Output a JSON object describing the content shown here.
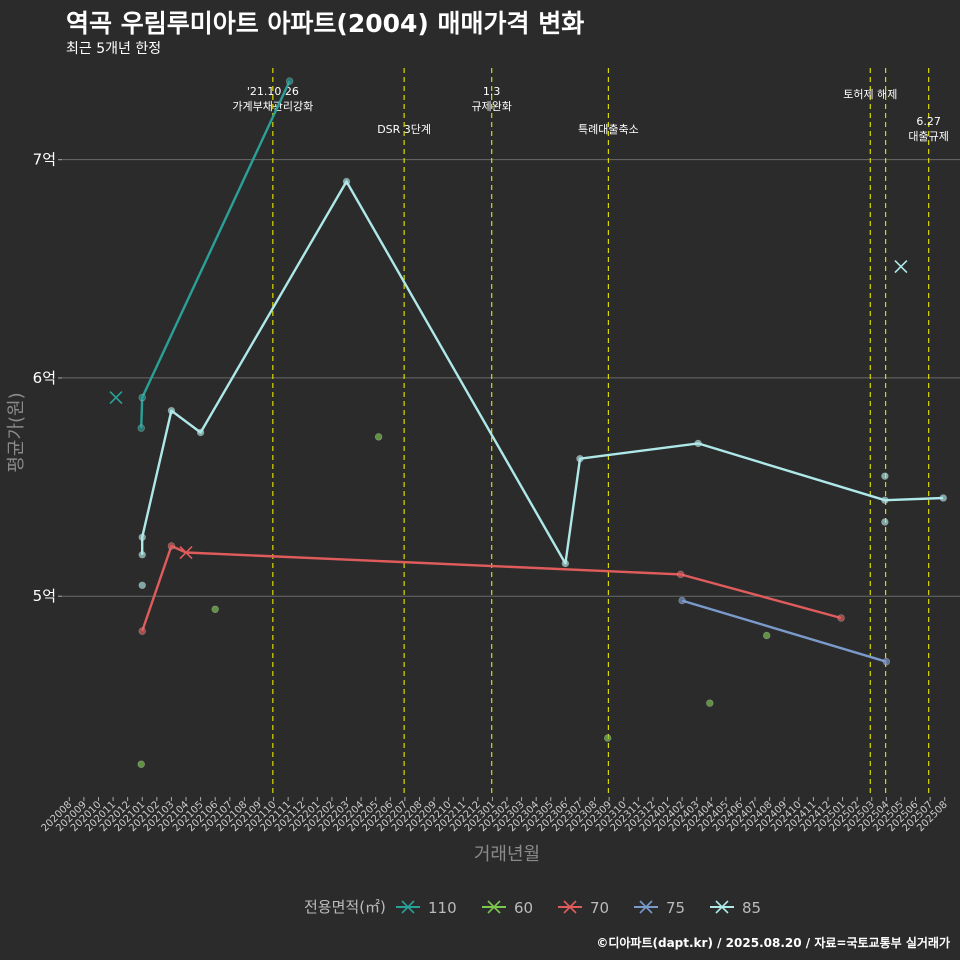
{
  "header": {
    "title": "역곡 우림루미아트 아파트(2004) 매매가격 변화",
    "subtitle": "최근 5개년 한정"
  },
  "caption": "©디아파트(dapt.kr) / 2025.08.20 / 자료=국토교통부 실거래가",
  "chart_data": {
    "type": "line",
    "xlabel": "거래년월",
    "ylabel": "평균가(원)",
    "ylim": [
      4.08,
      7.42
    ],
    "yticks": [
      5,
      6,
      7
    ],
    "ytick_labels": [
      "5억",
      "6억",
      "7억"
    ],
    "x_categories": [
      "202008",
      "202009",
      "202010",
      "202011",
      "202012",
      "202101",
      "202102",
      "202103",
      "202104",
      "202105",
      "202106",
      "202107",
      "202108",
      "202109",
      "202110",
      "202111",
      "202112",
      "202201",
      "202202",
      "202203",
      "202204",
      "202205",
      "202206",
      "202207",
      "202208",
      "202209",
      "202210",
      "202211",
      "202212",
      "202301",
      "202302",
      "202303",
      "202304",
      "202305",
      "202306",
      "202307",
      "202308",
      "202309",
      "202310",
      "202311",
      "202312",
      "202401",
      "202402",
      "202403",
      "202404",
      "202405",
      "202406",
      "202407",
      "202408",
      "202409",
      "202410",
      "202411",
      "202412",
      "202501",
      "202502",
      "202503",
      "202504",
      "202505",
      "202506",
      "202507",
      "202508"
    ],
    "legend_title": "전용면적(㎡)",
    "legend_position": "bottom",
    "series": [
      {
        "name": "110",
        "color": "#2aa198",
        "line": [
          [
            4.93,
            5.77
          ],
          [
            5.0,
            5.91
          ],
          [
            15.1,
            7.36
          ]
        ],
        "points": [
          [
            4.93,
            5.77
          ],
          [
            5.0,
            5.91
          ],
          [
            15.1,
            7.36
          ]
        ],
        "crosses": [
          [
            3.2,
            5.91
          ]
        ]
      },
      {
        "name": "60",
        "color": "#7ec850",
        "line": [],
        "points": [
          [
            4.93,
            4.23
          ],
          [
            10.0,
            4.94
          ],
          [
            21.2,
            5.73
          ],
          [
            36.9,
            4.35
          ],
          [
            43.9,
            4.51
          ],
          [
            47.8,
            4.82
          ]
        ],
        "crosses": []
      },
      {
        "name": "70",
        "color": "#e05c5c",
        "line": [
          [
            5.0,
            4.84
          ],
          [
            7.0,
            5.23
          ],
          [
            8.0,
            5.2
          ],
          [
            41.9,
            5.1
          ],
          [
            52.9,
            4.9
          ]
        ],
        "points": [
          [
            5.0,
            4.84
          ],
          [
            7.0,
            5.23
          ],
          [
            41.9,
            5.1
          ],
          [
            52.9,
            4.9
          ]
        ],
        "crosses": [
          [
            8.0,
            5.2
          ]
        ]
      },
      {
        "name": "75",
        "color": "#7b9acc",
        "line": [
          [
            42.0,
            4.98
          ],
          [
            56.0,
            4.7
          ]
        ],
        "points": [
          [
            42.0,
            4.98
          ],
          [
            56.0,
            4.7
          ]
        ],
        "crosses": []
      },
      {
        "name": "85",
        "color": "#aee8e8",
        "line": [
          [
            5.0,
            5.19
          ],
          [
            5.0,
            5.27
          ],
          [
            7.0,
            5.85
          ],
          [
            9.0,
            5.75
          ],
          [
            19.0,
            6.9
          ],
          [
            34.0,
            5.15
          ],
          [
            35.0,
            5.63
          ],
          [
            43.1,
            5.7
          ],
          [
            55.9,
            5.44
          ],
          [
            59.9,
            5.45
          ]
        ],
        "points": [
          [
            5.0,
            5.05
          ],
          [
            5.0,
            5.19
          ],
          [
            5.0,
            5.27
          ],
          [
            7.0,
            5.85
          ],
          [
            9.0,
            5.75
          ],
          [
            19.0,
            6.9
          ],
          [
            34.0,
            5.15
          ],
          [
            35.0,
            5.63
          ],
          [
            43.1,
            5.7
          ],
          [
            55.9,
            5.34
          ],
          [
            55.9,
            5.55
          ],
          [
            55.9,
            5.44
          ],
          [
            59.9,
            5.45
          ]
        ],
        "crosses": [
          [
            57.0,
            6.51
          ]
        ]
      }
    ],
    "events": [
      {
        "x": 13.95,
        "lines": [
          "'21.10.26",
          "가계부채관리강화"
        ],
        "level": 0
      },
      {
        "x": 22.95,
        "lines": [
          "DSR 3단계"
        ],
        "level": 2
      },
      {
        "x": 28.95,
        "lines": [
          "1.3",
          "규제완화"
        ],
        "level": 0
      },
      {
        "x": 36.95,
        "lines": [
          "특례대출축소"
        ],
        "level": 2
      },
      {
        "x": 54.9,
        "lines": [
          "토허제 해제"
        ],
        "level": 1
      },
      {
        "x": 55.95,
        "lines": [],
        "level": 1
      },
      {
        "x": 58.9,
        "lines": [
          "6.27",
          "대출규제"
        ],
        "level": 3
      }
    ]
  }
}
